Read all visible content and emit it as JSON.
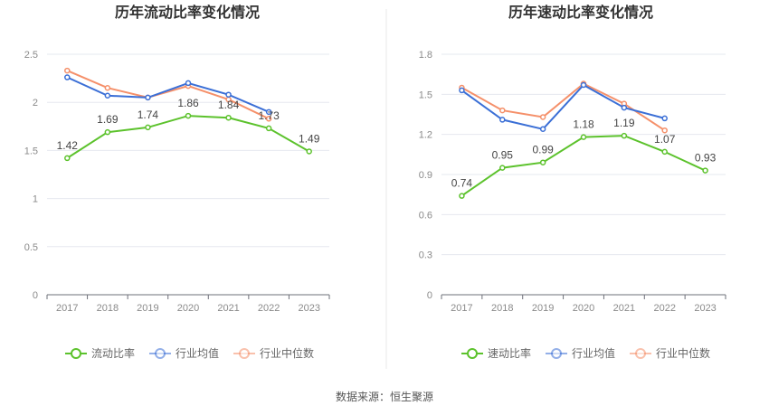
{
  "colors": {
    "company": "#5cc22c",
    "industry_avg": "#3b6fd6",
    "industry_median": "#f5906a",
    "grid": "#e6e8ef",
    "axis": "#6e7079",
    "divider": "#e9e9e9"
  },
  "chart_data": [
    {
      "type": "line",
      "title": "历年流动比率变化情况",
      "categories": [
        "2017",
        "2018",
        "2019",
        "2020",
        "2021",
        "2022",
        "2023"
      ],
      "ylim": [
        0,
        2.5
      ],
      "yticks": [
        "0",
        "0.5",
        "1",
        "1.5",
        "2",
        "2.5"
      ],
      "ytick_values": [
        0,
        0.5,
        1,
        1.5,
        2,
        2.5
      ],
      "series": [
        {
          "name": "流动比率",
          "color_key": "company",
          "labeled": true,
          "values": [
            1.42,
            1.69,
            1.74,
            1.86,
            1.84,
            1.73,
            1.49
          ],
          "labels": [
            "1.42",
            "1.69",
            "1.74",
            "1.86",
            "1.84",
            "1.73",
            "1.49"
          ]
        },
        {
          "name": "行业均值",
          "color_key": "industry_avg",
          "labeled": false,
          "values": [
            2.26,
            2.07,
            2.05,
            2.2,
            2.08,
            1.9,
            null
          ]
        },
        {
          "name": "行业中位数",
          "color_key": "industry_median",
          "labeled": false,
          "values": [
            2.33,
            2.15,
            2.05,
            2.17,
            2.03,
            1.83,
            null
          ]
        }
      ]
    },
    {
      "type": "line",
      "title": "历年速动比率变化情况",
      "categories": [
        "2017",
        "2018",
        "2019",
        "2020",
        "2021",
        "2022",
        "2023"
      ],
      "ylim": [
        0,
        1.8
      ],
      "yticks": [
        "0",
        "0.3",
        "0.6",
        "0.9",
        "1.2",
        "1.5",
        "1.8"
      ],
      "ytick_values": [
        0,
        0.3,
        0.6,
        0.9,
        1.2,
        1.5,
        1.8
      ],
      "series": [
        {
          "name": "速动比率",
          "color_key": "company",
          "labeled": true,
          "values": [
            0.74,
            0.95,
            0.99,
            1.18,
            1.19,
            1.07,
            0.93
          ],
          "labels": [
            "0.74",
            "0.95",
            "0.99",
            "1.18",
            "1.19",
            "1.07",
            "0.93"
          ]
        },
        {
          "name": "行业均值",
          "color_key": "industry_avg",
          "labeled": false,
          "values": [
            1.53,
            1.31,
            1.24,
            1.57,
            1.4,
            1.32,
            null
          ]
        },
        {
          "name": "行业中位数",
          "color_key": "industry_median",
          "labeled": false,
          "values": [
            1.55,
            1.38,
            1.33,
            1.58,
            1.43,
            1.23,
            null
          ]
        }
      ]
    }
  ],
  "footer": {
    "source": "数据来源：恒生聚源"
  }
}
